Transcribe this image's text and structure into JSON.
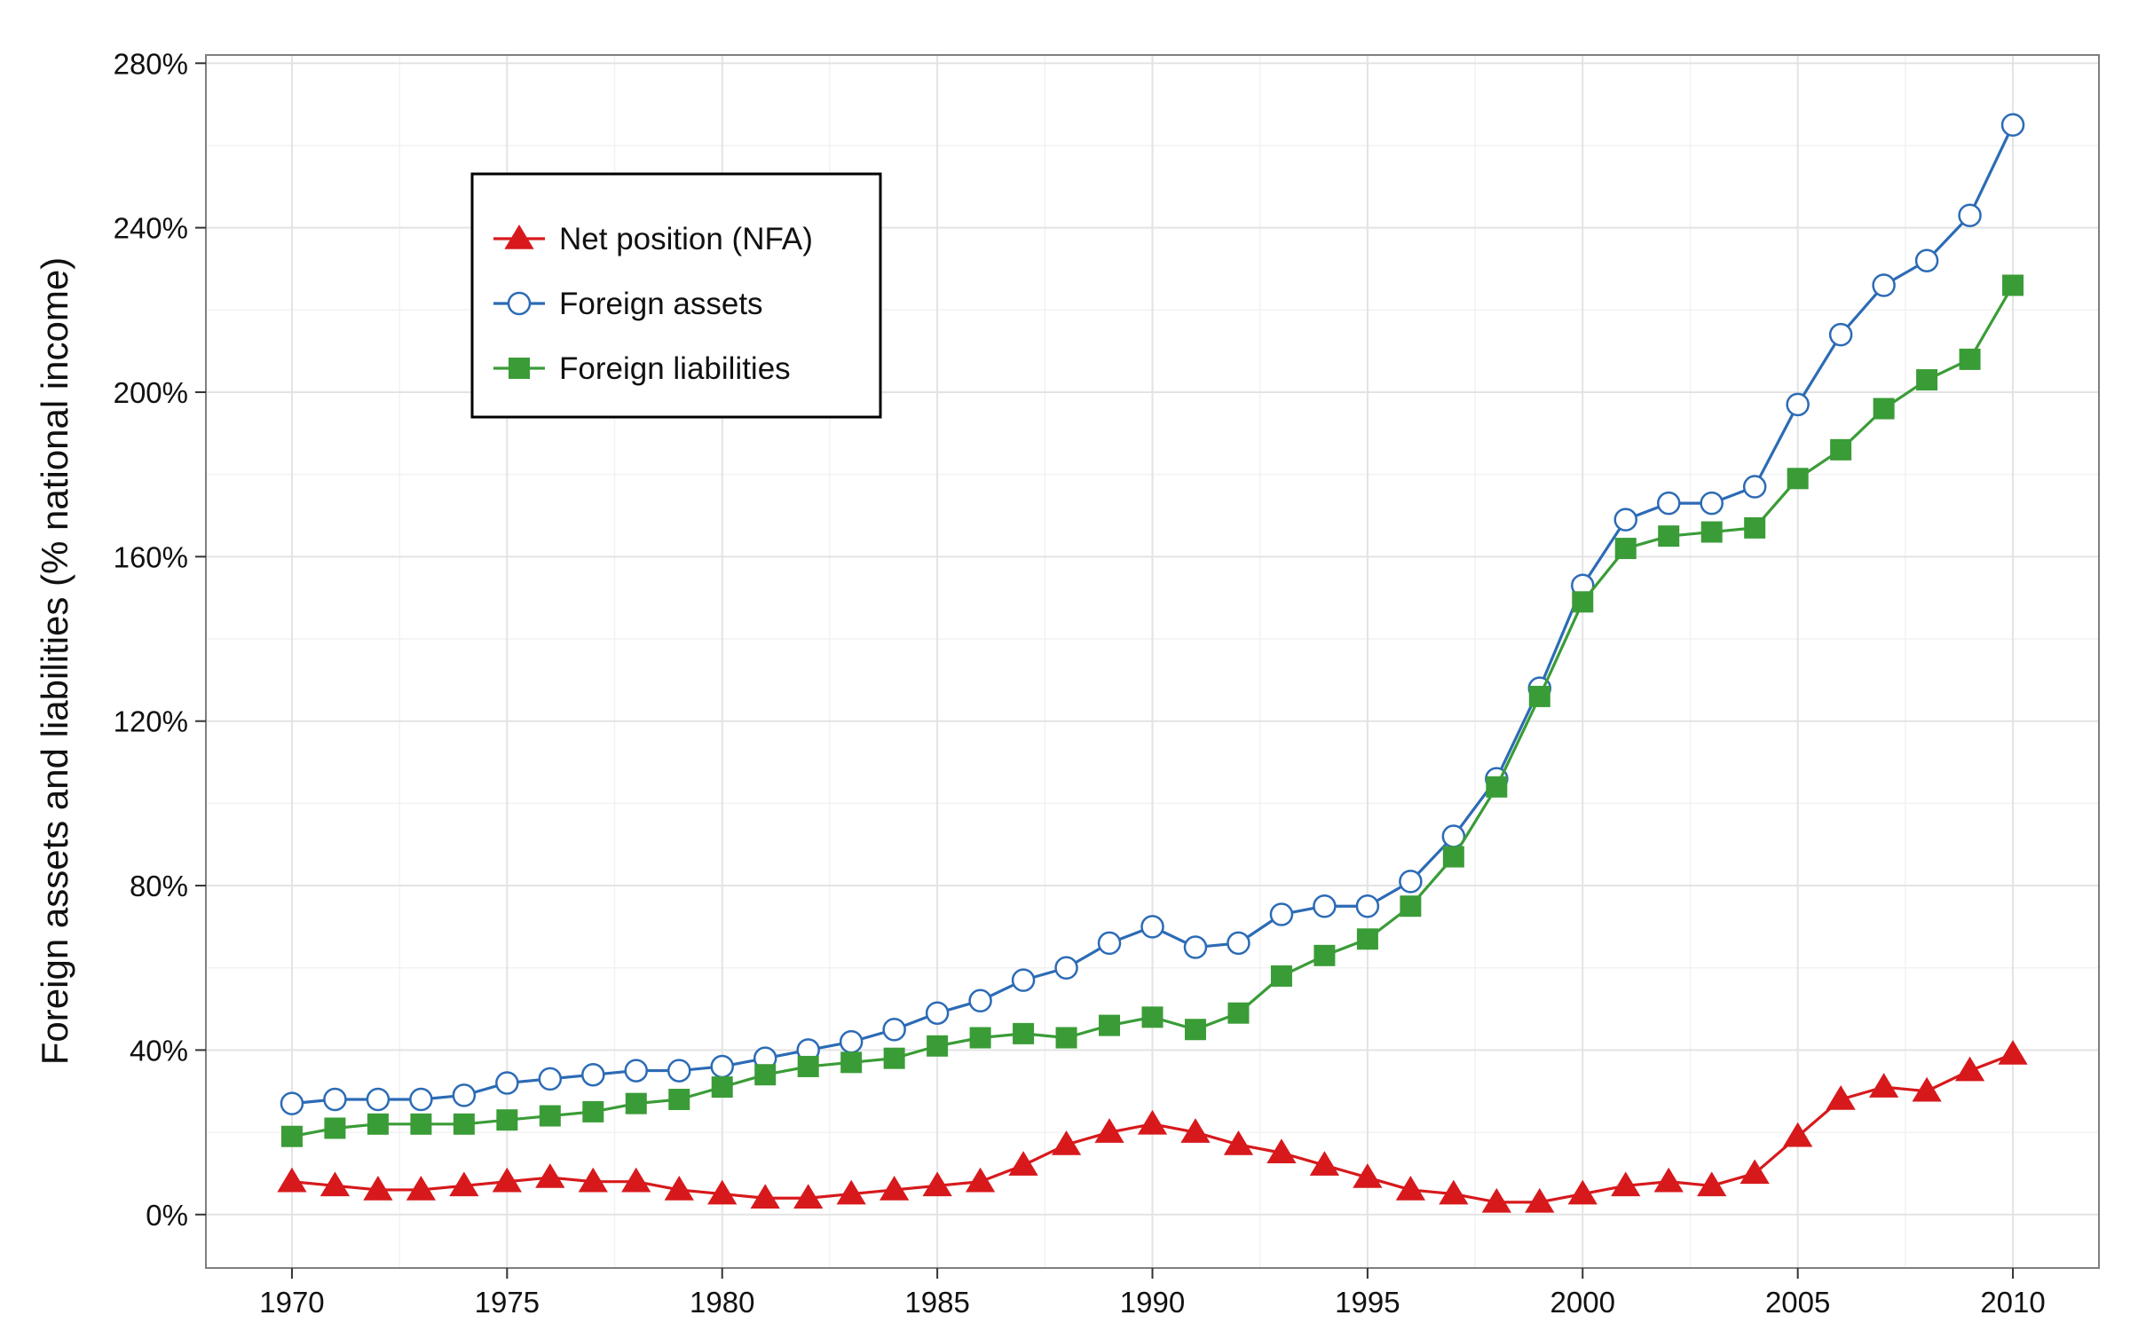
{
  "chart_data": {
    "type": "line",
    "title": "",
    "xlabel": "",
    "ylabel": "Foreign assets and liabilities (% national income)",
    "x": [
      1970,
      1971,
      1972,
      1973,
      1974,
      1975,
      1976,
      1977,
      1978,
      1979,
      1980,
      1981,
      1982,
      1983,
      1984,
      1985,
      1986,
      1987,
      1988,
      1989,
      1990,
      1991,
      1992,
      1993,
      1994,
      1995,
      1996,
      1997,
      1998,
      1999,
      2000,
      2001,
      2002,
      2003,
      2004,
      2005,
      2006,
      2007,
      2008,
      2009,
      2010
    ],
    "xlim": [
      1968,
      2012
    ],
    "ylim": [
      -13,
      282
    ],
    "x_ticks": [
      1970,
      1975,
      1980,
      1985,
      1990,
      1995,
      2000,
      2005,
      2010
    ],
    "x_tick_labels": [
      "1970",
      "1975",
      "1980",
      "1985",
      "1990",
      "1995",
      "2000",
      "2005",
      "2010"
    ],
    "y_ticks": [
      0,
      40,
      80,
      120,
      160,
      200,
      240,
      280
    ],
    "y_tick_labels": [
      "0%",
      "40%",
      "80%",
      "120%",
      "160%",
      "200%",
      "240%",
      "280%"
    ],
    "grid": true,
    "legend_position": "top-left",
    "series": [
      {
        "name": "Net position (NFA)",
        "color": "#d7191c",
        "marker": "triangle",
        "values": [
          8,
          7,
          6,
          6,
          7,
          8,
          9,
          8,
          8,
          6,
          5,
          4,
          4,
          5,
          6,
          7,
          8,
          12,
          17,
          20,
          22,
          20,
          17,
          15,
          12,
          9,
          6,
          5,
          3,
          3,
          5,
          7,
          8,
          7,
          10,
          19,
          28,
          31,
          30,
          35,
          39
        ]
      },
      {
        "name": "Foreign assets",
        "color": "#2c6bb5",
        "marker": "circle-open",
        "values": [
          27,
          28,
          28,
          28,
          29,
          32,
          33,
          34,
          35,
          35,
          36,
          38,
          40,
          42,
          45,
          49,
          52,
          57,
          60,
          66,
          70,
          65,
          66,
          73,
          75,
          75,
          81,
          92,
          106,
          128,
          153,
          169,
          173,
          173,
          177,
          197,
          214,
          226,
          232,
          243,
          265
        ]
      },
      {
        "name": "Foreign liabilities",
        "color": "#3a9c37",
        "marker": "square",
        "values": [
          19,
          21,
          22,
          22,
          22,
          23,
          24,
          25,
          27,
          28,
          31,
          34,
          36,
          37,
          38,
          41,
          43,
          44,
          43,
          46,
          48,
          45,
          49,
          58,
          63,
          67,
          75,
          87,
          104,
          126,
          149,
          162,
          165,
          166,
          167,
          179,
          186,
          196,
          203,
          208,
          226
        ]
      }
    ]
  }
}
